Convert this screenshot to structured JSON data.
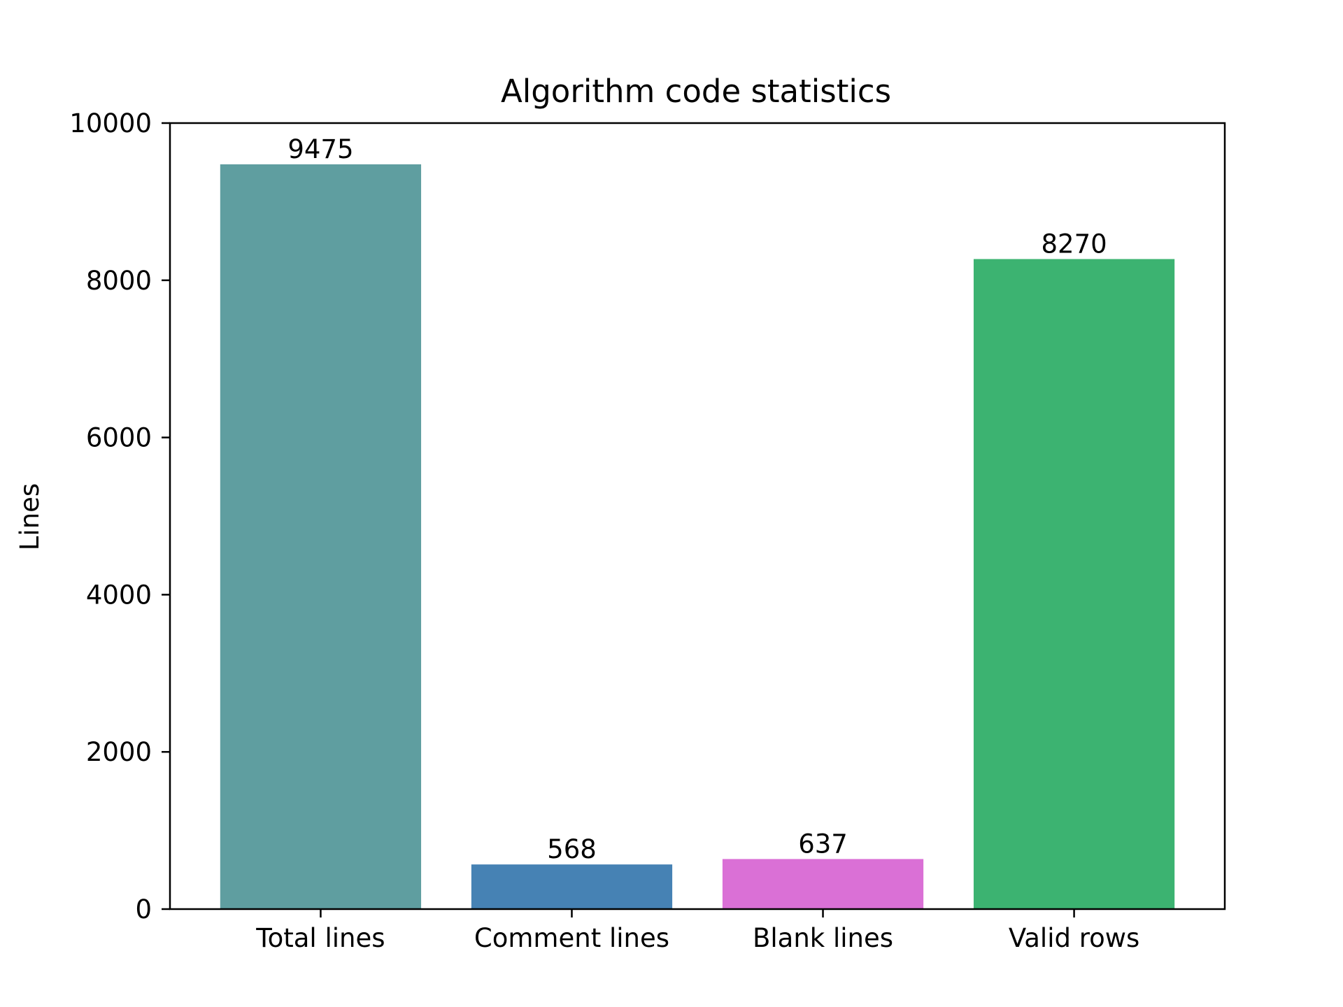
{
  "chart_data": {
    "type": "bar",
    "title": "Algorithm code statistics",
    "xlabel": "",
    "ylabel": "Lines",
    "categories": [
      "Total lines",
      "Comment lines",
      "Blank lines",
      "Valid rows"
    ],
    "values": [
      9475,
      568,
      637,
      8270
    ],
    "data_labels": [
      "9475",
      "568",
      "637",
      "8270"
    ],
    "colors": [
      "#5f9ea0",
      "#4682b4",
      "#da70d6",
      "#3cb371"
    ],
    "ylim": [
      0,
      10000
    ],
    "yticks": [
      0,
      2000,
      4000,
      6000,
      8000,
      10000
    ],
    "ytick_labels": [
      "0",
      "2000",
      "4000",
      "6000",
      "8000",
      "10000"
    ],
    "grid": false,
    "legend": "none"
  }
}
